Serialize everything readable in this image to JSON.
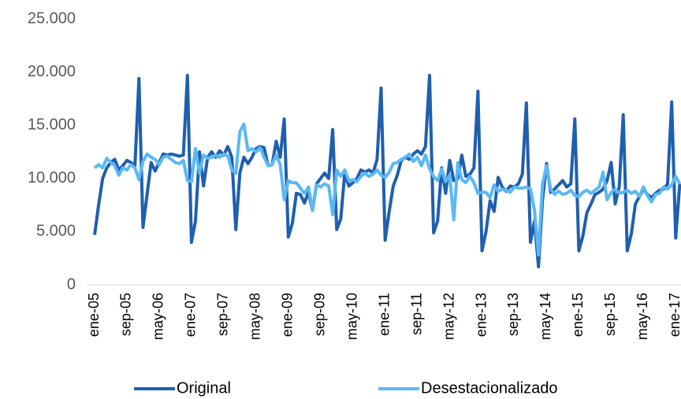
{
  "chart_data": {
    "type": "line",
    "categories": [
      "ene-05",
      null,
      null,
      null,
      null,
      null,
      null,
      null,
      "sep-05",
      null,
      null,
      null,
      null,
      null,
      null,
      null,
      "may-06",
      null,
      null,
      null,
      null,
      null,
      null,
      null,
      "ene-07",
      null,
      null,
      null,
      null,
      null,
      null,
      null,
      "sep-07",
      null,
      null,
      null,
      null,
      null,
      null,
      null,
      "may-08",
      null,
      null,
      null,
      null,
      null,
      null,
      null,
      "ene-09",
      null,
      null,
      null,
      null,
      null,
      null,
      null,
      "sep-09",
      null,
      null,
      null,
      null,
      null,
      null,
      null,
      "may-10",
      null,
      null,
      null,
      null,
      null,
      null,
      null,
      "ene-11",
      null,
      null,
      null,
      null,
      null,
      null,
      null,
      "sep-11",
      null,
      null,
      null,
      null,
      null,
      null,
      null,
      "may-12",
      null,
      null,
      null,
      null,
      null,
      null,
      null,
      "ene-13",
      null,
      null,
      null,
      null,
      null,
      null,
      null,
      "sep-13",
      null,
      null,
      null,
      null,
      null,
      null,
      null,
      "may-14",
      null,
      null,
      null,
      null,
      null,
      null,
      null,
      "ene-15",
      null,
      null,
      null,
      null,
      null,
      null,
      null,
      "sep-15",
      null,
      null,
      null,
      null,
      null,
      null,
      null,
      "may-16",
      null,
      null,
      null,
      null,
      null,
      null,
      null,
      "ene-17",
      null
    ],
    "series": [
      {
        "name": "Original",
        "color": "#1f5fae",
        "values": [
          4700,
          7500,
          10000,
          11000,
          11500,
          11800,
          10800,
          11200,
          11700,
          11500,
          11200,
          19400,
          5400,
          8500,
          11500,
          10700,
          11500,
          12300,
          12200,
          12300,
          12200,
          12100,
          12200,
          19700,
          4000,
          6000,
          12500,
          9300,
          12000,
          12500,
          12000,
          12600,
          12200,
          13000,
          12000,
          5200,
          10500,
          12000,
          11400,
          12000,
          12800,
          13000,
          12900,
          11200,
          11300,
          13500,
          12000,
          15600,
          4500,
          5800,
          8600,
          8500,
          7700,
          8700,
          7000,
          9500,
          10000,
          10500,
          10000,
          14600,
          5200,
          6200,
          10500,
          9300,
          9600,
          10000,
          10800,
          10600,
          10800,
          10500,
          11800,
          18500,
          4200,
          6900,
          9300,
          10300,
          11700,
          12000,
          11800,
          12300,
          12600,
          12300,
          13000,
          19700,
          4900,
          6000,
          11000,
          8600,
          11700,
          9800,
          10000,
          12200,
          10200,
          10400,
          11000,
          18200,
          3200,
          5000,
          7900,
          6900,
          10100,
          9200,
          8800,
          9300,
          9200,
          9500,
          10400,
          17100,
          4000,
          6000,
          1700,
          8000,
          11400,
          8700,
          9000,
          9400,
          9800,
          9200,
          9500,
          15600,
          3200,
          4600,
          6800,
          7600,
          8500,
          8700,
          9000,
          9800,
          11500,
          7600,
          9200,
          16000,
          3200,
          4800,
          7600,
          8300,
          9000,
          8500,
          8200,
          8600,
          8900,
          9000,
          9500,
          17200,
          4400,
          9500
        ]
      },
      {
        "name": "Desestacionalizado",
        "color": "#5bb8f5",
        "values": [
          11000,
          11300,
          11000,
          11900,
          11500,
          11200,
          10300,
          11000,
          10800,
          11300,
          11000,
          9900,
          11600,
          12300,
          12000,
          11800,
          11300,
          12000,
          12100,
          11800,
          11500,
          11400,
          11700,
          9800,
          9700,
          12800,
          10500,
          12200,
          11900,
          12000,
          12200,
          12000,
          12300,
          12100,
          10800,
          10500,
          14400,
          15100,
          12600,
          12800,
          12500,
          12900,
          12000,
          11200,
          11300,
          12200,
          11300,
          8000,
          9800,
          9600,
          9600,
          9100,
          8600,
          9200,
          7000,
          9400,
          9200,
          9500,
          9300,
          6600,
          10800,
          10200,
          10800,
          9800,
          9900,
          9700,
          10200,
          10500,
          10200,
          10400,
          10800,
          10300,
          10100,
          10600,
          11400,
          11500,
          11800,
          12000,
          12300,
          11600,
          12000,
          11200,
          12200,
          10900,
          10200,
          9800,
          10900,
          9700,
          10300,
          6100,
          11500,
          9900,
          9600,
          10200,
          9600,
          8600,
          8700,
          8700,
          8200,
          9400,
          8800,
          9000,
          8900,
          8700,
          9200,
          9100,
          9100,
          9200,
          9000,
          7000,
          2800,
          9500,
          11200,
          9000,
          8500,
          8800,
          8500,
          8600,
          8900,
          8400,
          8300,
          8700,
          8900,
          8600,
          8900,
          9200,
          10600,
          8000,
          8700,
          9000,
          8600,
          8700,
          8900,
          8600,
          8800,
          8300,
          9200,
          8400,
          7800,
          8500,
          8600,
          9200,
          9000,
          9400,
          10200,
          9500
        ]
      }
    ],
    "ylim": [
      0,
      25000
    ],
    "yticks": [
      0,
      {
        "value": 5000,
        "label": "5.000"
      },
      {
        "value": 10000,
        "label": "10.000"
      },
      {
        "value": 15000,
        "label": "15.000"
      },
      {
        "value": 20000,
        "label": "20.000"
      },
      {
        "value": 25000,
        "label": "25.000"
      }
    ],
    "legend": "bottom"
  }
}
